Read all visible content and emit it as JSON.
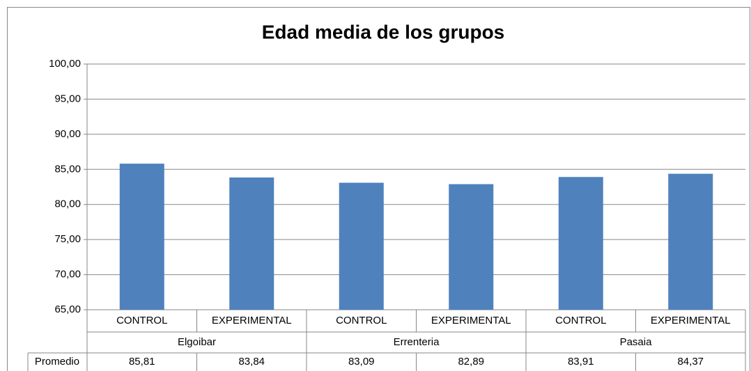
{
  "chart_data": {
    "type": "bar",
    "title": "Edad media de los grupos",
    "categories": [
      "CONTROL",
      "EXPERIMENTAL",
      "CONTROL",
      "EXPERIMENTAL",
      "CONTROL",
      "EXPERIMENTAL"
    ],
    "groups": [
      "Elgoibar",
      "Errenteria",
      "Pasaia"
    ],
    "series": [
      {
        "name": "Promedio",
        "color": "#4f81bd",
        "values": [
          85.81,
          83.84,
          83.09,
          82.89,
          83.91,
          84.37
        ],
        "value_labels": [
          "85,81",
          "83,84",
          "83,09",
          "82,89",
          "83,91",
          "84,37"
        ]
      }
    ],
    "ylim": [
      65,
      100
    ],
    "yticks": [
      {
        "value": 65,
        "label": "65,00"
      },
      {
        "value": 70,
        "label": "70,00"
      },
      {
        "value": 75,
        "label": "75,00"
      },
      {
        "value": 80,
        "label": "80,00"
      },
      {
        "value": 85,
        "label": "85,00"
      },
      {
        "value": 90,
        "label": "90,00"
      },
      {
        "value": 95,
        "label": "95,00"
      },
      {
        "value": 100,
        "label": "100,00"
      }
    ],
    "grid": true
  }
}
